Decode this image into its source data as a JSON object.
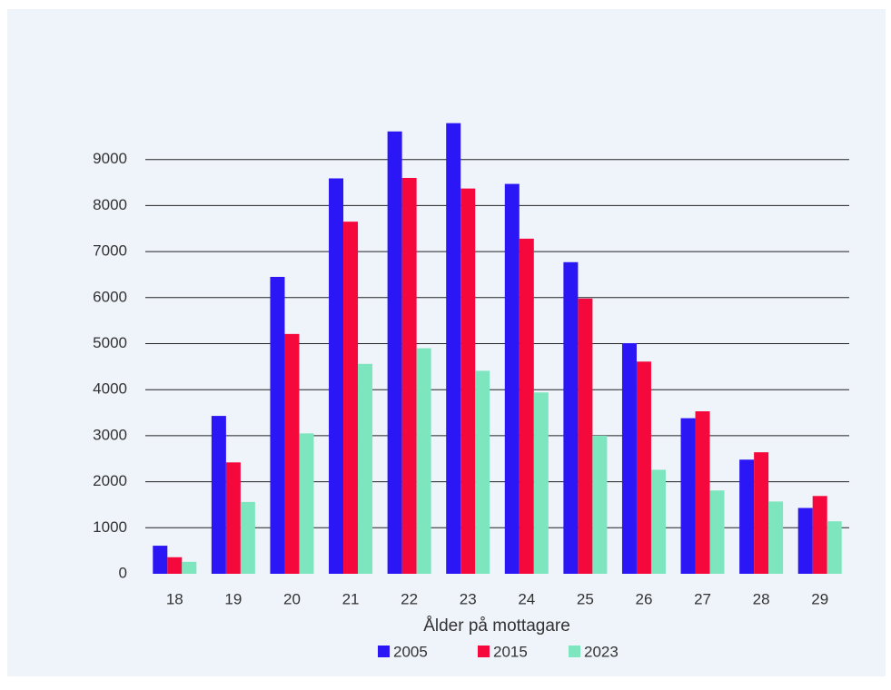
{
  "chart_data": {
    "type": "bar",
    "x_label": "Ålder på mottagare",
    "categories": [
      "18",
      "19",
      "20",
      "21",
      "22",
      "23",
      "24",
      "25",
      "26",
      "27",
      "28",
      "29"
    ],
    "series": [
      {
        "name": "2005",
        "color": "#2b16f5",
        "values": [
          610,
          3430,
          6450,
          8590,
          9610,
          9790,
          8470,
          6770,
          5010,
          3380,
          2480,
          1430
        ]
      },
      {
        "name": "2015",
        "color": "#f5083c",
        "values": [
          360,
          2420,
          5210,
          7650,
          8600,
          8370,
          7280,
          5980,
          4610,
          3530,
          2640,
          1690
        ]
      },
      {
        "name": "2023",
        "color": "#7ee6bf",
        "values": [
          260,
          1560,
          3050,
          4560,
          4900,
          4410,
          3940,
          3000,
          2260,
          1810,
          1570,
          1140
        ]
      }
    ],
    "ylim": [
      0,
      10000
    ],
    "yticks": [
      0,
      1000,
      2000,
      3000,
      4000,
      5000,
      6000,
      7000,
      8000,
      9000
    ],
    "grid": true
  }
}
